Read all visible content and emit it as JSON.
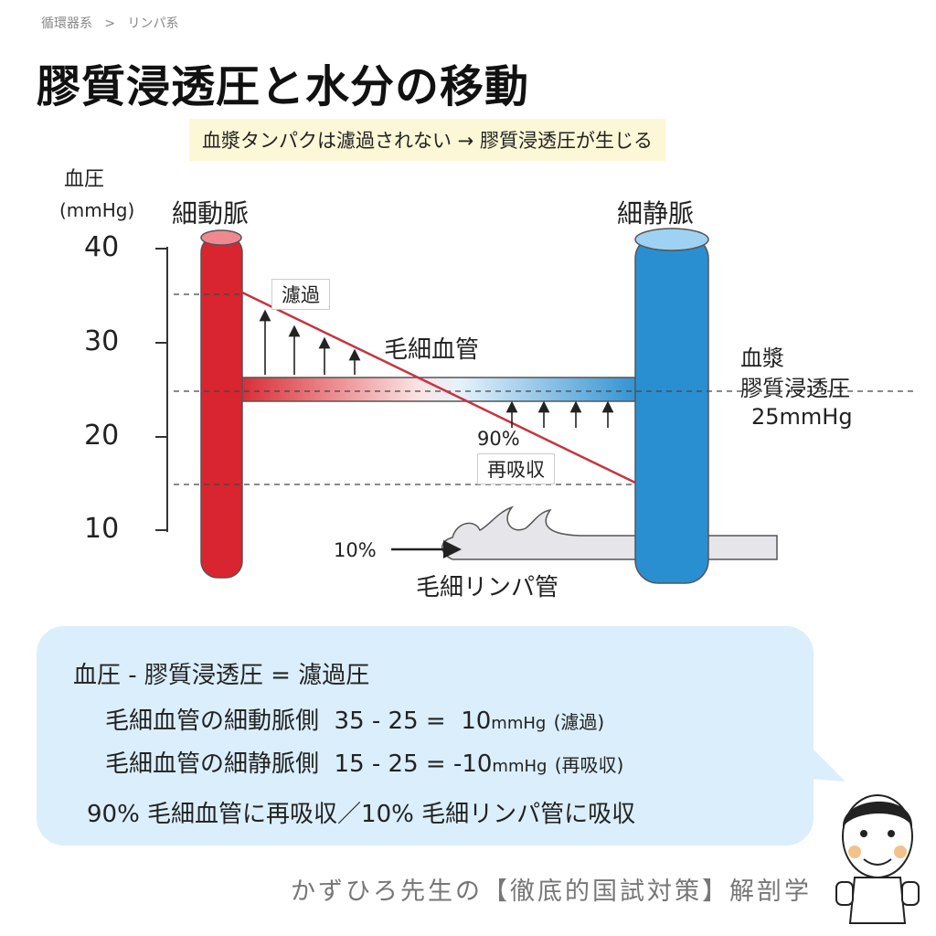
{
  "breadcrumb": {
    "parent": "循環器系",
    "separator": ">",
    "current": "リンパ系"
  },
  "title": "膠質浸透圧と水分の移動",
  "note": "血漿タンパクは濾過されない → 膠質浸透圧が生じる",
  "axis": {
    "label_line1": "血圧",
    "label_line2": "(mmHg)",
    "ticks": [
      "40",
      "30",
      "20",
      "10"
    ]
  },
  "labels": {
    "arteriole": "細動脈",
    "venule": "細静脈",
    "capillary": "毛細血管",
    "filtration": "濾過",
    "reabsorb_pct": "90%",
    "reabsorb": "再吸収",
    "lymph_pct": "10%",
    "lymph": "毛細リンパ管",
    "plasma1": "血漿",
    "plasma2": "膠質浸透圧",
    "plasma3": "25mmHg"
  },
  "colors": {
    "artery": "#d8252f",
    "vein": "#2a8fd0",
    "line": "#c8323f",
    "bubble": "#dbeefb",
    "note": "#fcf7d6"
  },
  "formula": {
    "header": "血圧 - 膠質浸透圧 = 濾過圧",
    "rows": [
      {
        "side": "毛細血管の細動脈側",
        "calc": "35 - 25 =  10",
        "unit": "mmHg",
        "result": "(濾過)"
      },
      {
        "side": "毛細血管の細静脈側",
        "calc": "15 - 25 = -10",
        "unit": "mmHg",
        "result": "(再吸収)"
      }
    ],
    "summary": "90% 毛細血管に再吸収／10% 毛細リンパ管に吸収"
  },
  "footer": "かずひろ先生の【徹底的国試対策】解剖学"
}
